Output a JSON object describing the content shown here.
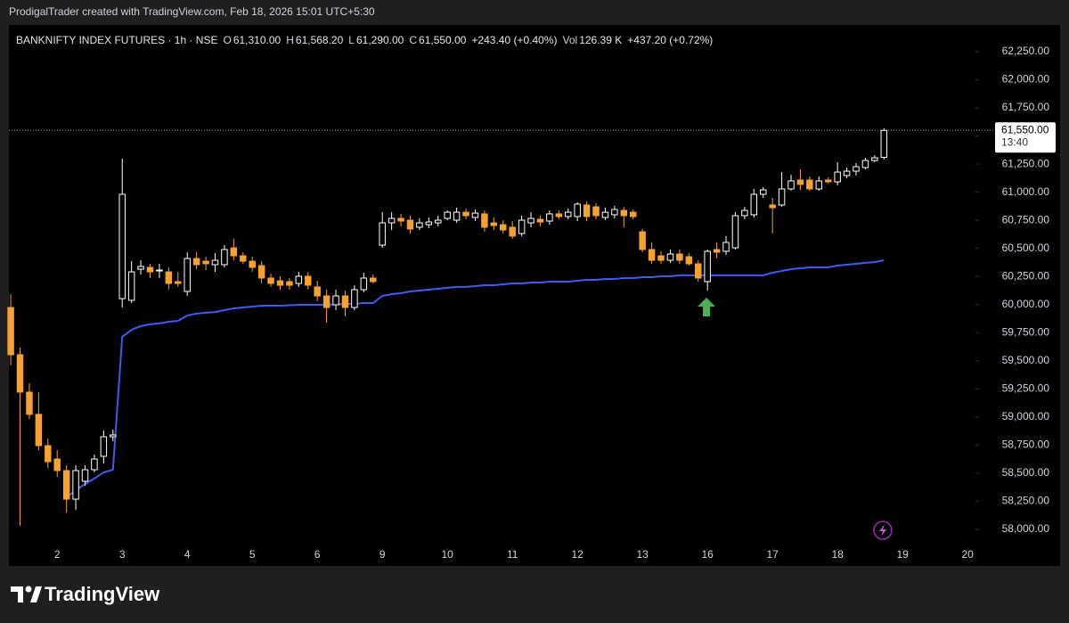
{
  "header": {
    "credit": "ProdigalTrader created with TradingView.com, Feb 18, 2026 15:01 UTC+5:30"
  },
  "chart_data": {
    "type": "candlestick",
    "ohlc_legend": {
      "symbol": "BANKNIFTY INDEX FUTURES · 1h · NSE",
      "items": [
        {
          "key": "O",
          "text": "61,310.00"
        },
        {
          "key": "H",
          "text": "61,568.20"
        },
        {
          "key": "L",
          "text": "61,290.00"
        },
        {
          "key": "C",
          "text": "61,550.00"
        }
      ],
      "change": "+243.40 (+0.40%)",
      "volume_key": "Vol",
      "volume": "126.39 K",
      "volume_change": "+437.20 (+0.72%)"
    },
    "x": [
      -5,
      -4,
      -3,
      -2,
      -1,
      0,
      1,
      2,
      3,
      4,
      5,
      6,
      7,
      8,
      9,
      10,
      11,
      12,
      13,
      14,
      15,
      16,
      17,
      18,
      19,
      20,
      21,
      22,
      23,
      24,
      25,
      26,
      27,
      28,
      29,
      30,
      31,
      32,
      33,
      34,
      35,
      36,
      37,
      38,
      39,
      40,
      41,
      42,
      43,
      44,
      45,
      46,
      47,
      48,
      49,
      50,
      51,
      52,
      53,
      54,
      55,
      56,
      57,
      58,
      59,
      60,
      61,
      62,
      63,
      64,
      65,
      66,
      67,
      68,
      69,
      70,
      71,
      72,
      73,
      74,
      75,
      76,
      77,
      78,
      79,
      80,
      81,
      82,
      83,
      84,
      85,
      86,
      87,
      88,
      89
    ],
    "open": [
      59974,
      59554,
      59221,
      59023,
      58745,
      58626,
      58523,
      58269,
      58428,
      58531,
      58650,
      58824,
      60053,
      60038,
      60315,
      60331,
      60307,
      60291,
      60204,
      60117,
      60410,
      60386,
      60355,
      60355,
      60505,
      60434,
      60386,
      60347,
      60236,
      60212,
      60204,
      60188,
      60252,
      60157,
      60077,
      59998,
      60077,
      59974,
      60133,
      60236,
      60529,
      60727,
      60767,
      60751,
      60688,
      60711,
      60727,
      60767,
      60751,
      60822,
      60775,
      60807,
      60727,
      60711,
      60688,
      60632,
      60727,
      60759,
      60743,
      60807,
      60783,
      60783,
      60886,
      60870,
      60775,
      60799,
      60838,
      60822,
      60648,
      60490,
      60434,
      60394,
      60450,
      60426,
      60363,
      60204,
      60490,
      60474,
      60505,
      60791,
      60799,
      60981,
      60886,
      60886,
      61029,
      61108,
      61108,
      61029,
      61108,
      61092,
      61148,
      61187,
      61219,
      61282,
      61310
    ],
    "high": [
      60093,
      59617,
      59300,
      59221,
      58808,
      58705,
      58570,
      58570,
      58570,
      58666,
      58880,
      58888,
      61298,
      60386,
      60394,
      60363,
      60363,
      60331,
      60291,
      60466,
      60466,
      60426,
      60458,
      60529,
      60585,
      60466,
      60426,
      60386,
      60276,
      60252,
      60236,
      60291,
      60291,
      60212,
      60133,
      60133,
      60125,
      60172,
      60283,
      60268,
      60822,
      60822,
      60807,
      60791,
      60767,
      60775,
      60791,
      60838,
      60862,
      60854,
      60846,
      60838,
      60775,
      60751,
      60743,
      60791,
      60822,
      60791,
      60838,
      60838,
      60854,
      60910,
      60918,
      60902,
      60862,
      60878,
      60870,
      60846,
      60672,
      60553,
      60474,
      60490,
      60490,
      60458,
      60394,
      60490,
      60553,
      60609,
      60822,
      60870,
      61029,
      61045,
      60949,
      61180,
      61156,
      61203,
      61140,
      61140,
      61132,
      61267,
      61219,
      61259,
      61306,
      61330,
      61568.2
    ],
    "low": [
      59459,
      58031,
      58983,
      58705,
      58547,
      58467,
      58150,
      58174,
      58388,
      58507,
      58586,
      58785,
      59974,
      60014,
      60268,
      60236,
      60236,
      60133,
      60157,
      60077,
      60315,
      60307,
      60291,
      60331,
      60394,
      60363,
      60291,
      60188,
      60157,
      60133,
      60133,
      60157,
      60133,
      60030,
      59839,
      59950,
      59895,
      59950,
      60109,
      60188,
      60505,
      60664,
      60696,
      60632,
      60664,
      60680,
      60696,
      60751,
      60727,
      60759,
      60743,
      60648,
      60664,
      60632,
      60585,
      60609,
      60688,
      60696,
      60711,
      60759,
      60759,
      60743,
      60743,
      60759,
      60751,
      60767,
      60688,
      60759,
      60466,
      60363,
      60363,
      60371,
      60363,
      60347,
      60204,
      60125,
      60410,
      60442,
      60490,
      60759,
      60775,
      60949,
      60632,
      60870,
      61013,
      61021,
      61013,
      61013,
      61077,
      61061,
      61124,
      61148,
      61203,
      61267,
      61290
    ],
    "close": [
      59554,
      59221,
      59023,
      58745,
      58602,
      58523,
      58269,
      58523,
      58531,
      58626,
      58824,
      58840,
      60981,
      60291,
      60339,
      60291,
      60307,
      60188,
      60188,
      60410,
      60355,
      60363,
      60394,
      60490,
      60434,
      60386,
      60331,
      60236,
      60188,
      60172,
      60172,
      60252,
      60172,
      60077,
      59974,
      60077,
      59974,
      60133,
      60236,
      60204,
      60727,
      60767,
      60743,
      60672,
      60727,
      60735,
      60751,
      60822,
      60822,
      60791,
      60814,
      60688,
      60703,
      60664,
      60609,
      60751,
      60767,
      60735,
      60807,
      60783,
      60822,
      60894,
      60783,
      60791,
      60822,
      60846,
      60791,
      60783,
      60490,
      60394,
      60394,
      60450,
      60394,
      60363,
      60236,
      60474,
      60466,
      60553,
      60791,
      60838,
      60981,
      61021,
      60862,
      61029,
      61100,
      61069,
      61029,
      61100,
      61092,
      61179,
      61187,
      61227,
      61282,
      61306,
      61550
    ],
    "up_color": "#ffffff",
    "down_color": "#f7a131",
    "line": {
      "color": "#3d5cf2",
      "values": [
        null,
        null,
        null,
        null,
        null,
        null,
        58285,
        58348,
        58404,
        58452,
        58507,
        58531,
        59713,
        59776,
        59808,
        59824,
        59832,
        59847,
        59855,
        59903,
        59919,
        59927,
        59934,
        59950,
        59966,
        59974,
        59982,
        59990,
        59990,
        59990,
        59994,
        59998,
        59998,
        59998,
        59998,
        60002,
        60006,
        60006,
        60014,
        60014,
        60077,
        60093,
        60101,
        60117,
        60125,
        60133,
        60141,
        60149,
        60157,
        60157,
        60164,
        60172,
        60172,
        60180,
        60188,
        60188,
        60196,
        60196,
        60204,
        60204,
        60204,
        60212,
        60220,
        60220,
        60228,
        60228,
        60236,
        60236,
        60244,
        60244,
        60252,
        60252,
        60260,
        60260,
        60260,
        60260,
        60260,
        60260,
        60260,
        60260,
        60260,
        60260,
        60283,
        60299,
        60315,
        60323,
        60331,
        60331,
        60331,
        60347,
        60355,
        60363,
        60371,
        60378,
        60394
      ]
    },
    "last_price": {
      "label": "61,550.00",
      "countdown": "13:40"
    },
    "xlim": [
      -5.2,
      98.85
    ],
    "xticks": [
      {
        "value": 0,
        "label": "2"
      },
      {
        "value": 7,
        "label": "3"
      },
      {
        "value": 14,
        "label": "4"
      },
      {
        "value": 21,
        "label": "5"
      },
      {
        "value": 28,
        "label": "6"
      },
      {
        "value": 35,
        "label": "9"
      },
      {
        "value": 42,
        "label": "10"
      },
      {
        "value": 49,
        "label": "11"
      },
      {
        "value": 56,
        "label": "12"
      },
      {
        "value": 63,
        "label": "13"
      },
      {
        "value": 70,
        "label": "16"
      },
      {
        "value": 77,
        "label": "17"
      },
      {
        "value": 84,
        "label": "18"
      },
      {
        "value": 91,
        "label": "19"
      },
      {
        "value": 98,
        "label": "20"
      }
    ],
    "ylim": [
      57833,
      62472
    ],
    "yticks": [
      {
        "value": 58000,
        "label": "58,000.00"
      },
      {
        "value": 58250,
        "label": "58,250.00"
      },
      {
        "value": 58500,
        "label": "58,500.00"
      },
      {
        "value": 58750,
        "label": "58,750.00"
      },
      {
        "value": 59000,
        "label": "59,000.00"
      },
      {
        "value": 59250,
        "label": "59,250.00"
      },
      {
        "value": 59500,
        "label": "59,500.00"
      },
      {
        "value": 59750,
        "label": "59,750.00"
      },
      {
        "value": 60000,
        "label": "60,000.00"
      },
      {
        "value": 60250,
        "label": "60,250.00"
      },
      {
        "value": 60500,
        "label": "60,500.00"
      },
      {
        "value": 60750,
        "label": "60,750.00"
      },
      {
        "value": 61000,
        "label": "61,000.00"
      },
      {
        "value": 61250,
        "label": "61,250.00"
      },
      {
        "value": 61500,
        "label": "61,500.00"
      },
      {
        "value": 61750,
        "label": "61,750.00"
      },
      {
        "value": 62000,
        "label": "62,000.00"
      },
      {
        "value": 62250,
        "label": "62,250.00"
      }
    ],
    "grid": false
  },
  "footer": {
    "brand": "TradingView"
  }
}
